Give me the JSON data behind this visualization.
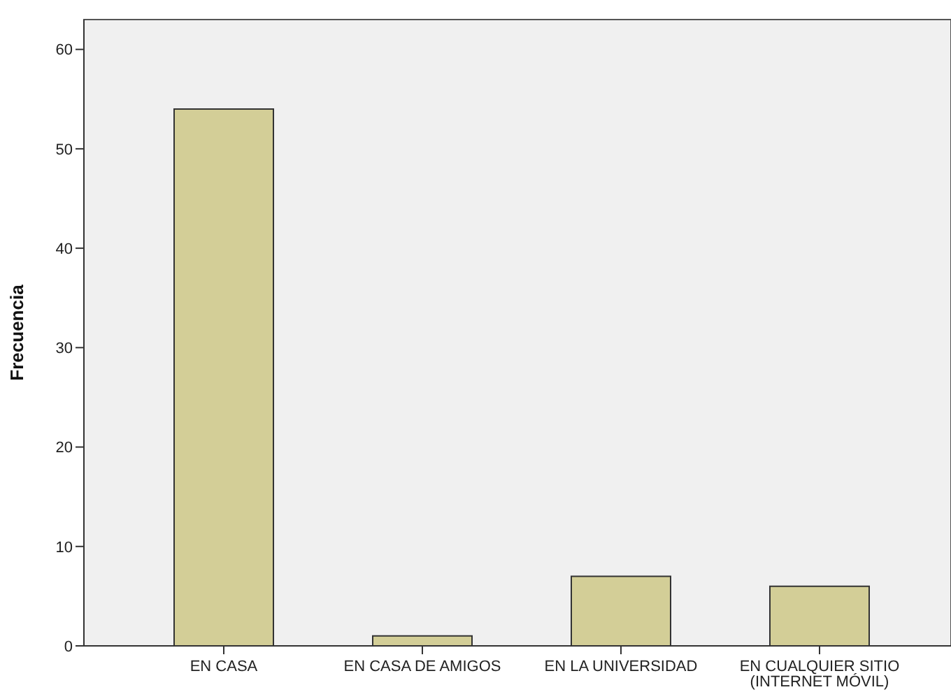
{
  "chart_data": {
    "type": "bar",
    "ylabel": "Frecuencia",
    "categories": [
      "EN CASA",
      "EN CASA DE AMIGOS",
      "EN LA UNIVERSIDAD",
      "EN CUALQUIER SITIO\n(INTERNET MÓVIL)"
    ],
    "values": [
      54,
      1,
      7,
      6
    ],
    "color": "#d3ce97",
    "ylim": [
      0,
      63
    ],
    "yticks": [
      0,
      10,
      20,
      30,
      40,
      50,
      60
    ]
  }
}
